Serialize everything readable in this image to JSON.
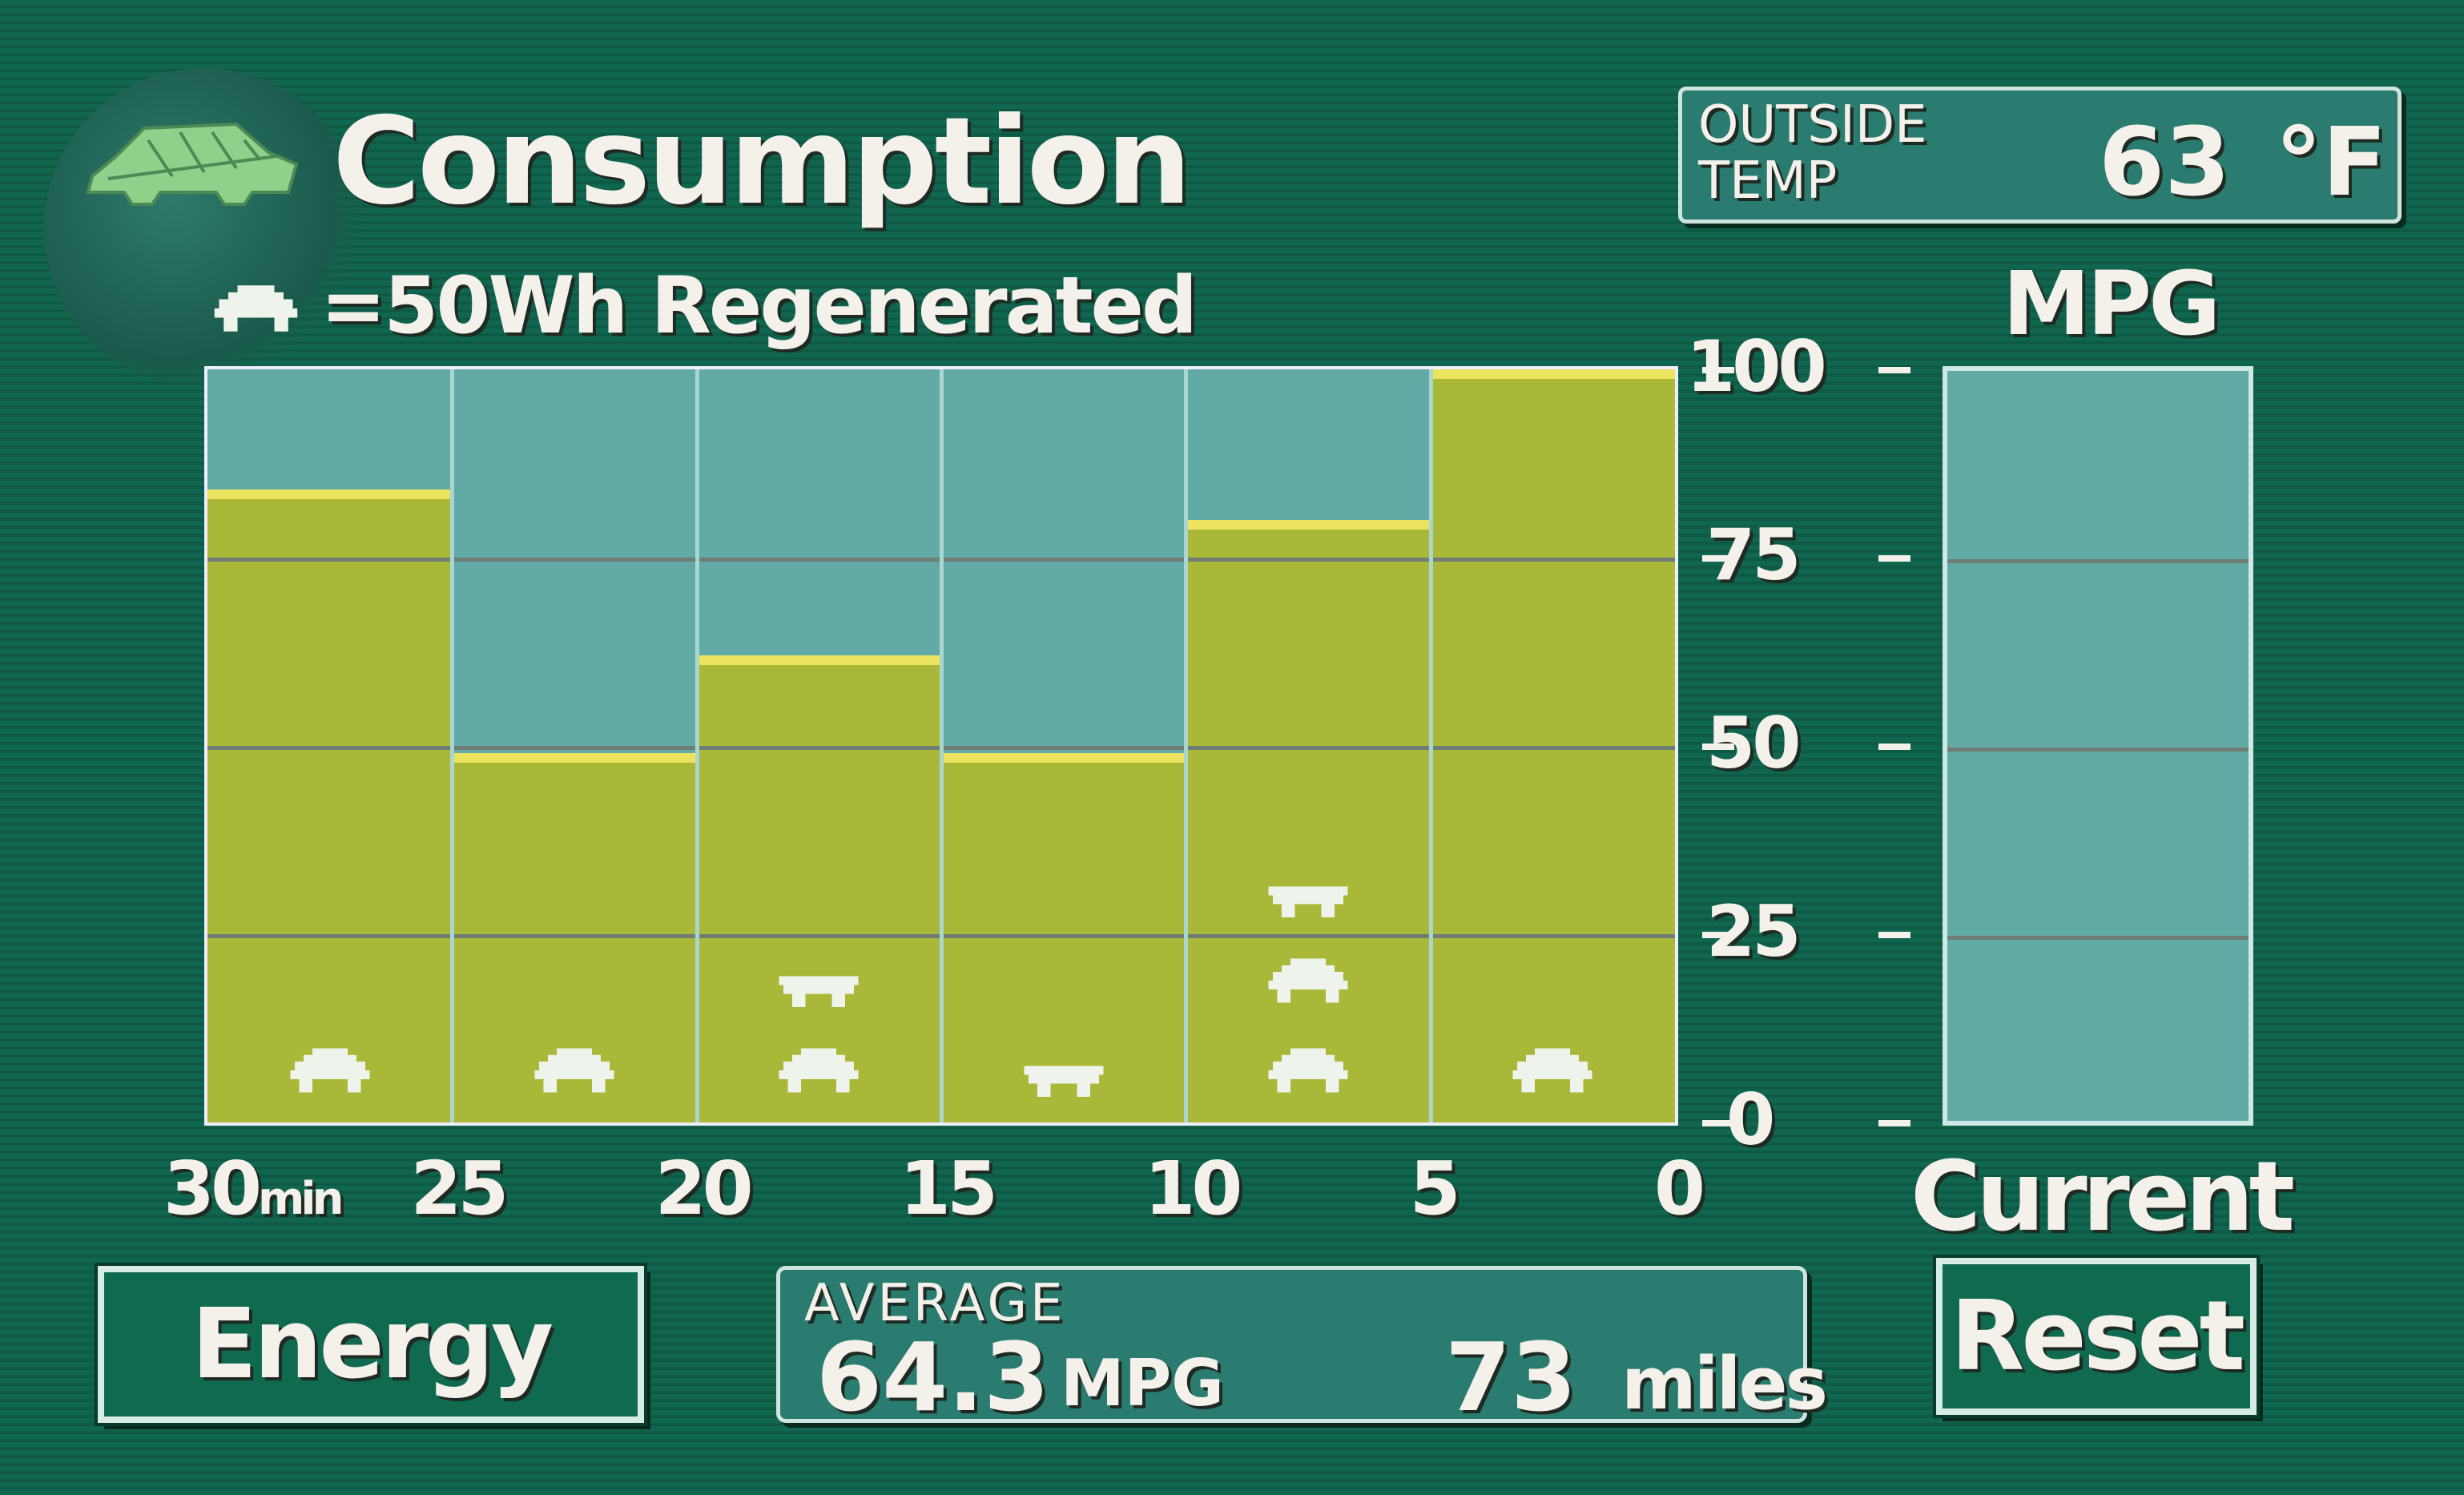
{
  "header": {
    "title": "Consumption",
    "car_icon": "leaf-car-icon"
  },
  "legend": {
    "icon": "regen-car-icon",
    "label": "=50Wh Regenerated"
  },
  "outside_temp": {
    "label_line1": "OUTSIDE",
    "label_line2": "TEMP",
    "value": "63",
    "unit": "°F"
  },
  "colors": {
    "background": "#0f5f4a",
    "plot_bg": "#62aaa6",
    "bar": "#a9b838",
    "bar_top": "#ece45e"
  },
  "chart_data": {
    "type": "bar",
    "ylabel": "MPG",
    "ylim": [
      0,
      100
    ],
    "yticks": [
      "100",
      "75",
      "50",
      "25",
      "0"
    ],
    "xticks": [
      {
        "main": "30",
        "unit": "min"
      },
      {
        "main": "25"
      },
      {
        "main": "20"
      },
      {
        "main": "15"
      },
      {
        "main": "10"
      },
      {
        "main": "5"
      },
      {
        "main": "0"
      }
    ],
    "categories": [
      "30-25",
      "25-20",
      "20-15",
      "15-10",
      "10-5",
      "5-0"
    ],
    "values": [
      84,
      49,
      62,
      49,
      80,
      100
    ],
    "regenerated_50wh_units": [
      1,
      1,
      1.5,
      0.5,
      2.5,
      1
    ],
    "current_label": "Current",
    "current_value": 0
  },
  "buttons": {
    "energy": "Energy",
    "reset": "Reset"
  },
  "average": {
    "label": "AVERAGE",
    "mpg": "64.3",
    "mpg_unit": "MPG",
    "miles": "73",
    "miles_unit": "miles"
  }
}
